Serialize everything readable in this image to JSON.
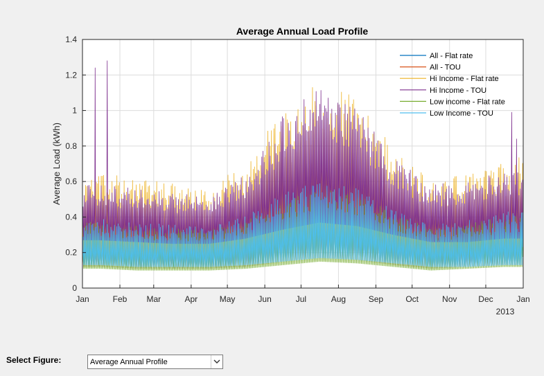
{
  "chart_data": {
    "type": "line",
    "title": "Average Annual Load Profile",
    "xlabel": "",
    "ylabel": "Average Load (kWh)",
    "year_label": "2013",
    "x_tick_labels": [
      "Jan",
      "Feb",
      "Mar",
      "Apr",
      "May",
      "Jun",
      "Jul",
      "Aug",
      "Sep",
      "Oct",
      "Nov",
      "Dec",
      "Jan"
    ],
    "y_tick_labels": [
      "0",
      "0.2",
      "0.4",
      "0.6",
      "0.8",
      "1",
      "1.2",
      "1.4"
    ],
    "ylim": [
      0,
      1.4
    ],
    "xlim": [
      "2013-01-01",
      "2014-01-01"
    ],
    "grid": true,
    "legend_position": "top-right",
    "series": [
      {
        "name": "All - Flat rate",
        "color": "#0072BD",
        "daily_min": [
          0.12,
          0.11,
          0.11,
          0.11,
          0.12,
          0.15,
          0.17,
          0.16,
          0.13,
          0.11,
          0.12,
          0.13
        ],
        "daily_max": [
          0.4,
          0.38,
          0.36,
          0.34,
          0.42,
          0.55,
          0.62,
          0.58,
          0.45,
          0.36,
          0.4,
          0.44
        ]
      },
      {
        "name": "All - TOU",
        "color": "#D95319",
        "daily_min": [
          0.12,
          0.11,
          0.11,
          0.11,
          0.12,
          0.15,
          0.17,
          0.16,
          0.13,
          0.11,
          0.12,
          0.13
        ],
        "daily_max": [
          0.4,
          0.38,
          0.36,
          0.34,
          0.42,
          0.55,
          0.62,
          0.58,
          0.45,
          0.36,
          0.4,
          0.44
        ]
      },
      {
        "name": "Hi Income - Flat rate",
        "color": "#EDB120",
        "daily_min": [
          0.15,
          0.14,
          0.14,
          0.14,
          0.15,
          0.18,
          0.2,
          0.19,
          0.16,
          0.14,
          0.15,
          0.16
        ],
        "daily_max": [
          0.55,
          0.52,
          0.5,
          0.48,
          0.6,
          0.85,
          0.98,
          0.9,
          0.65,
          0.52,
          0.55,
          0.62
        ]
      },
      {
        "name": "Hi Income - TOU",
        "color": "#7E2F8E",
        "daily_min": [
          0.27,
          0.26,
          0.25,
          0.25,
          0.28,
          0.33,
          0.37,
          0.35,
          0.3,
          0.26,
          0.26,
          0.28
        ],
        "daily_max": [
          0.52,
          0.5,
          0.48,
          0.46,
          0.58,
          0.85,
          0.98,
          0.88,
          0.64,
          0.52,
          0.53,
          0.6
        ]
      },
      {
        "name": "Low income - Flat rate",
        "color": "#77AC30",
        "daily_min": [
          0.11,
          0.1,
          0.1,
          0.1,
          0.11,
          0.13,
          0.15,
          0.14,
          0.12,
          0.1,
          0.11,
          0.12
        ],
        "daily_max": [
          0.32,
          0.3,
          0.29,
          0.28,
          0.33,
          0.42,
          0.48,
          0.45,
          0.36,
          0.29,
          0.31,
          0.35
        ]
      },
      {
        "name": "Low Income - TOU",
        "color": "#4DBEEE",
        "daily_min": [
          0.13,
          0.12,
          0.12,
          0.12,
          0.13,
          0.15,
          0.17,
          0.16,
          0.14,
          0.12,
          0.12,
          0.13
        ],
        "daily_max": [
          0.34,
          0.32,
          0.31,
          0.3,
          0.36,
          0.46,
          0.52,
          0.48,
          0.38,
          0.31,
          0.33,
          0.37
        ]
      }
    ],
    "peak_events": [
      {
        "date": "2013-01-11",
        "value": 1.24
      },
      {
        "date": "2013-01-21",
        "value": 1.28
      },
      {
        "date": "2013-12-22",
        "value": 0.99
      },
      {
        "date": "2013-12-26",
        "value": 0.84
      }
    ]
  },
  "controls": {
    "select_label": "Select Figure:",
    "select_value": "Average Annual Profile",
    "dropdown_icon": "chevron-down-icon"
  }
}
